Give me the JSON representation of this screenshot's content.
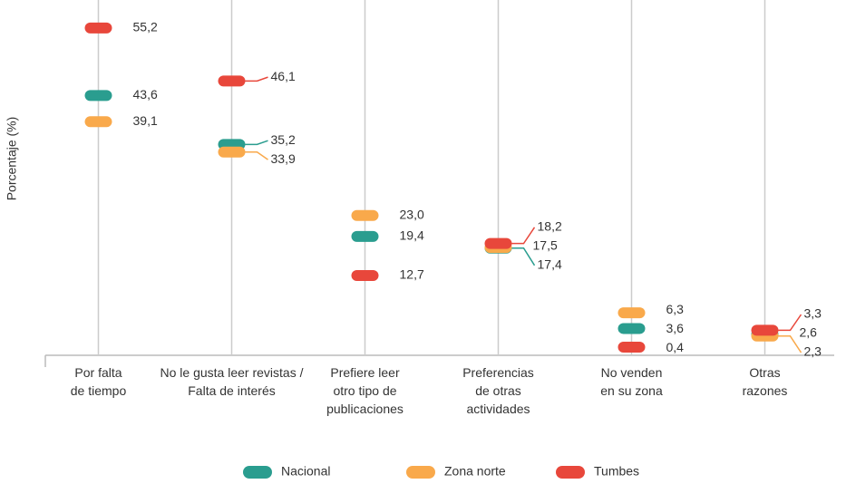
{
  "chart_data": {
    "type": "dot",
    "y_label": "Porcentaje (%)",
    "categories": [
      "Por falta\nde tiempo",
      "No le gusta leer revistas /\nFalta de interés",
      "Prefiere leer\notro tipo de\npublicaciones",
      "Preferencias\nde otras\nactividades",
      "No venden\nen su zona",
      "Otras\nrazones"
    ],
    "series": [
      {
        "name": "Nacional",
        "color": "#2a9d8f",
        "values": [
          43.6,
          35.2,
          19.4,
          17.4,
          3.6,
          2.6
        ],
        "value_labels": [
          "43,6",
          "35,2",
          "19,4",
          "17,4",
          "3,6",
          "2,6"
        ]
      },
      {
        "name": "Zona norte",
        "color": "#f9a94b",
        "values": [
          39.1,
          33.9,
          23.0,
          17.5,
          6.3,
          2.3
        ],
        "value_labels": [
          "39,1",
          "33,9",
          "23,0",
          "17,5",
          "6,3",
          "2,3"
        ]
      },
      {
        "name": "Tumbes",
        "color": "#e8473b",
        "values": [
          55.2,
          46.1,
          12.7,
          18.2,
          0.4,
          3.3
        ],
        "value_labels": [
          "55,2",
          "46,1",
          "12,7",
          "18,2",
          "0,4",
          "3,3"
        ]
      }
    ],
    "ylim": [
      -1,
      60
    ]
  }
}
